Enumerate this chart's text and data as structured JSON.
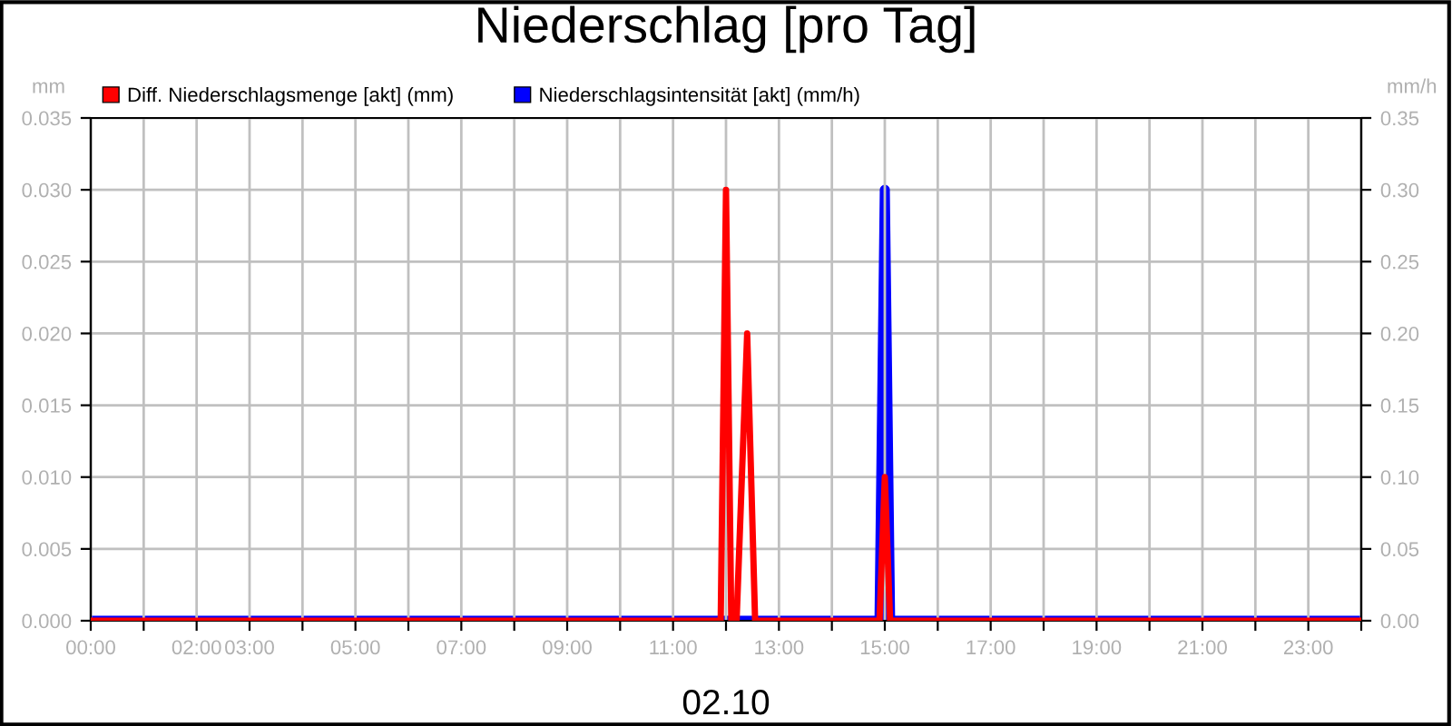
{
  "chart_data": {
    "type": "line",
    "title": "Niederschlag [pro Tag]",
    "xlabel": "02.10",
    "ylabel": "mm",
    "y2label": "mm/h",
    "series": [
      {
        "name": "Diff. Niederschlagsmenge [akt] (mm)",
        "color": "#ff0000",
        "x": [
          0,
          11.9,
          12.0,
          12.1,
          12.2,
          12.4,
          12.55,
          14.9,
          15.0,
          15.1,
          24
        ],
        "values": [
          0,
          0,
          0.03,
          0,
          0,
          0.02,
          0,
          0,
          0.01,
          0,
          0
        ]
      },
      {
        "name": "Niederschlagsintensität [akt] (mm/h)",
        "color": "#0000ff",
        "axis": "y2",
        "x": [
          0,
          14.9,
          15.0,
          15.1,
          24
        ],
        "values": [
          0,
          0,
          0.3,
          0,
          0
        ]
      }
    ],
    "xlim": [
      0,
      24
    ],
    "xticks": [
      {
        "value": 0,
        "label": "00:00"
      },
      {
        "value": 1,
        "label": null
      },
      {
        "value": 2,
        "label": "02:00"
      },
      {
        "value": 3,
        "label": "03:00"
      },
      {
        "value": 4,
        "label": null
      },
      {
        "value": 5,
        "label": "05:00"
      },
      {
        "value": 6,
        "label": null
      },
      {
        "value": 7,
        "label": "07:00"
      },
      {
        "value": 8,
        "label": null
      },
      {
        "value": 9,
        "label": "09:00"
      },
      {
        "value": 10,
        "label": null
      },
      {
        "value": 11,
        "label": "11:00"
      },
      {
        "value": 12,
        "label": null
      },
      {
        "value": 13,
        "label": "13:00"
      },
      {
        "value": 14,
        "label": null
      },
      {
        "value": 15,
        "label": "15:00"
      },
      {
        "value": 16,
        "label": null
      },
      {
        "value": 17,
        "label": "17:00"
      },
      {
        "value": 18,
        "label": null
      },
      {
        "value": 19,
        "label": "19:00"
      },
      {
        "value": 20,
        "label": null
      },
      {
        "value": 21,
        "label": "21:00"
      },
      {
        "value": 22,
        "label": null
      },
      {
        "value": 23,
        "label": "23:00"
      },
      {
        "value": 24,
        "label": null
      }
    ],
    "ylim": [
      0,
      0.035
    ],
    "yticks": [
      {
        "value": 0,
        "label": "0.000"
      },
      {
        "value": 0.005,
        "label": "0.005"
      },
      {
        "value": 0.01,
        "label": "0.010"
      },
      {
        "value": 0.015,
        "label": "0.015"
      },
      {
        "value": 0.02,
        "label": "0.020"
      },
      {
        "value": 0.025,
        "label": "0.025"
      },
      {
        "value": 0.03,
        "label": "0.030"
      },
      {
        "value": 0.035,
        "label": "0.035"
      }
    ],
    "y2lim": [
      0,
      0.35
    ],
    "y2ticks": [
      {
        "value": 0,
        "label": "0.00"
      },
      {
        "value": 0.05,
        "label": "0.05"
      },
      {
        "value": 0.1,
        "label": "0.10"
      },
      {
        "value": 0.15,
        "label": "0.15"
      },
      {
        "value": 0.2,
        "label": "0.20"
      },
      {
        "value": 0.25,
        "label": "0.25"
      },
      {
        "value": 0.3,
        "label": "0.30"
      },
      {
        "value": 0.35,
        "label": "0.35"
      }
    ],
    "grid": true,
    "legend": "top left",
    "marker": "none",
    "line_style": "solid"
  }
}
